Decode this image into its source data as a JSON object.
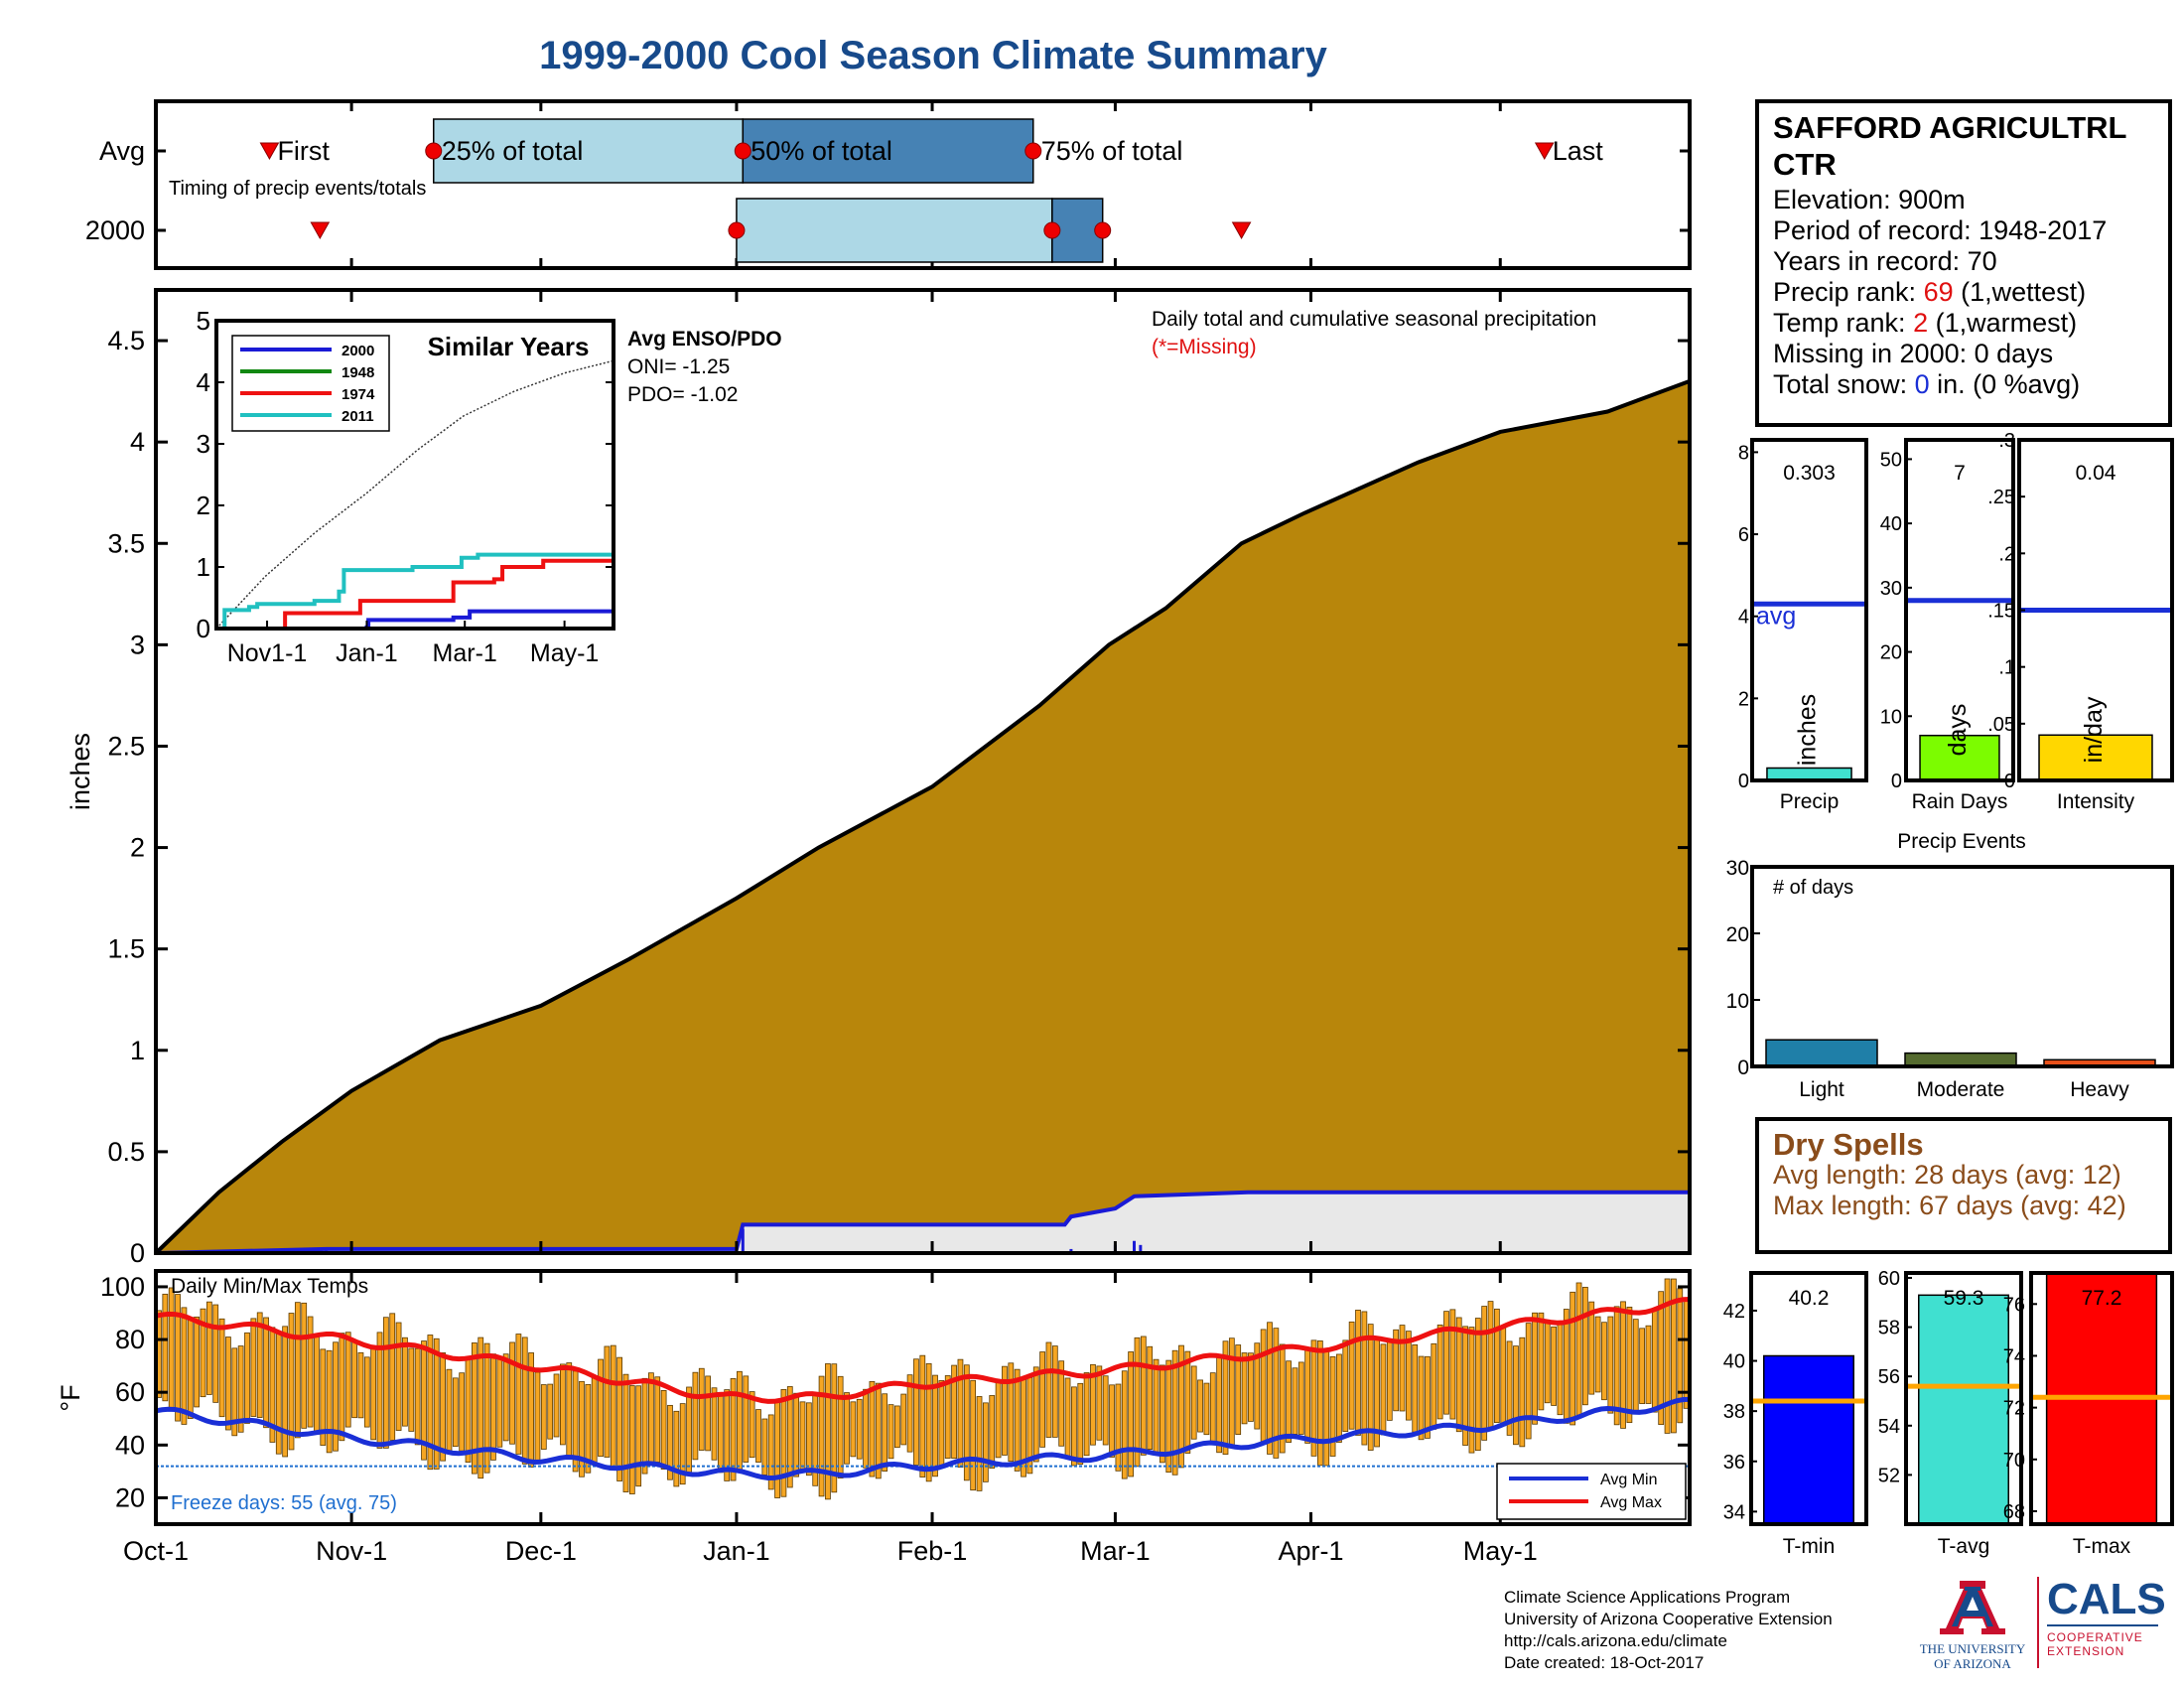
{
  "title": "1999-2000 Cool Season Climate Summary",
  "station": {
    "name_line1": "SAFFORD AGRICULTRL",
    "name_line2": "CTR",
    "elevation": "Elevation: 900m",
    "period": "Period of record: 1948-2017",
    "years": "Years in record: 70",
    "precip_rank_prefix": "Precip rank: ",
    "precip_rank_value": "69",
    "precip_rank_suffix": " (1,wettest)",
    "temp_rank_prefix": "Temp rank: ",
    "temp_rank_value": "2",
    "temp_rank_suffix": " (1,warmest)",
    "missing": "Missing in 2000: 0 days",
    "snow_prefix": "Total snow: ",
    "snow_value": "0",
    "snow_suffix": " in. (0 %avg)"
  },
  "dry_spells": {
    "title": "Dry Spells",
    "avg": "Avg length: 28 days (avg: 12)",
    "max": "Max length: 67 days (avg: 42)"
  },
  "footer": {
    "line1": "Climate Science Applications Program",
    "line2": "University of Arizona Cooperative Extension",
    "line3": "http://cals.arizona.edu/climate",
    "line4": " Date created: 18-Oct-2017"
  },
  "logos": {
    "ua_line1": "THE UNIVERSITY",
    "ua_line2": "OF ARIZONA",
    "cals": "CALS",
    "cals_sub1": "COOPERATIVE",
    "cals_sub2": "EXTENSION"
  },
  "colors": {
    "cumulative_fill": "#b8860b",
    "season_2000": "#1a1ad6",
    "bar_orange": "#f5a623",
    "avg_max": "#ee1111",
    "avg_min": "#1a2fd6",
    "timing_light": "#add8e6",
    "timing_dark": "#4682b4",
    "precip_bar": "#40e0d0",
    "raindays_bar": "#7cfc00",
    "intensity_bar": "#ffd700",
    "tmin_bar": "#0000ff",
    "tavg_bar": "#40e0d0",
    "tmax_bar": "#ff0000",
    "light_bar": "#1f7fa8",
    "moderate_bar": "#556b2f",
    "heavy_bar": "#e8501a",
    "avg_line_temp": "#ffa500"
  },
  "chart_data": [
    {
      "id": "timing",
      "type": "bar",
      "subtitle": "Timing of precip events/totals",
      "rows": [
        "Avg",
        "2000"
      ],
      "labels": [
        "First",
        "25% of total",
        "50% of total",
        "75% of total",
        "Last"
      ],
      "avg": {
        "first": "Oct-19",
        "p25": "Nov-14",
        "p50": "Jan-2",
        "p75": "Feb-17",
        "last": "May-8"
      },
      "y2000": {
        "first": "Oct-27",
        "p25": "Jan-1",
        "p50": "Feb-20",
        "p75": "Feb-28",
        "last": "Mar-21"
      },
      "xlim": [
        "Oct-1",
        "May-31"
      ]
    },
    {
      "id": "cumulative",
      "type": "area",
      "annotation": "Daily total and cumulative seasonal precipitation",
      "missing_note": "(*=Missing)",
      "ylabel": "inches",
      "yticks": [
        0,
        0.5,
        1,
        1.5,
        2,
        2.5,
        3,
        3.5,
        4,
        4.5
      ],
      "ylim": [
        0,
        4.75
      ],
      "xticks": [
        "Oct-1",
        "Nov-1",
        "Dec-1",
        "Jan-1",
        "Feb-1",
        "Mar-1",
        "Apr-1",
        "May-1"
      ],
      "avg_cumulative": [
        [
          0,
          0
        ],
        [
          10,
          0.3
        ],
        [
          20,
          0.55
        ],
        [
          31,
          0.8
        ],
        [
          45,
          1.05
        ],
        [
          61,
          1.22
        ],
        [
          75,
          1.45
        ],
        [
          92,
          1.75
        ],
        [
          105,
          2.0
        ],
        [
          123,
          2.3
        ],
        [
          140,
          2.7
        ],
        [
          151,
          3.0
        ],
        [
          160,
          3.18
        ],
        [
          172,
          3.5
        ],
        [
          182,
          3.65
        ],
        [
          200,
          3.9
        ],
        [
          213,
          4.05
        ],
        [
          230,
          4.15
        ],
        [
          243,
          4.3
        ]
      ],
      "season_2000": [
        [
          0,
          0
        ],
        [
          27,
          0.02
        ],
        [
          92,
          0.02
        ],
        [
          93,
          0.14
        ],
        [
          144,
          0.14
        ],
        [
          145,
          0.18
        ],
        [
          152,
          0.22
        ],
        [
          155,
          0.28
        ],
        [
          173,
          0.3
        ],
        [
          243,
          0.3
        ]
      ],
      "daily_events_2000": [
        [
          27,
          0.02
        ],
        [
          93,
          0.12
        ],
        [
          145,
          0.02
        ],
        [
          152,
          0.04
        ],
        [
          155,
          0.06
        ],
        [
          156,
          0.04
        ]
      ],
      "enso": {
        "title": "Avg ENSO/PDO",
        "oni": "ONI= -1.25",
        "pdo": "PDO= -1.02"
      }
    },
    {
      "id": "similar_years",
      "type": "line",
      "title": "Similar Years",
      "yticks": [
        0,
        1,
        2,
        3,
        4,
        5
      ],
      "ylim": [
        0,
        5
      ],
      "xticks": [
        "Nov1-1",
        "Jan-1",
        "Mar-1",
        "May-1"
      ],
      "series": [
        {
          "name": "2000",
          "color": "#1a1ad6",
          "points": [
            [
              0,
              0
            ],
            [
              92,
              0.02
            ],
            [
              93,
              0.14
            ],
            [
              145,
              0.18
            ],
            [
              155,
              0.28
            ],
            [
              243,
              0.3
            ]
          ]
        },
        {
          "name": "1948",
          "color": "#118811",
          "points": []
        },
        {
          "name": "1974",
          "color": "#ee1111",
          "points": [
            [
              0,
              0
            ],
            [
              40,
              0
            ],
            [
              42,
              0.25
            ],
            [
              85,
              0.25
            ],
            [
              88,
              0.45
            ],
            [
              140,
              0.45
            ],
            [
              145,
              0.75
            ],
            [
              170,
              0.8
            ],
            [
              175,
              1.0
            ],
            [
              200,
              1.1
            ],
            [
              243,
              1.3
            ]
          ]
        },
        {
          "name": "2011",
          "color": "#20c0c0",
          "points": [
            [
              0,
              0
            ],
            [
              5,
              0.3
            ],
            [
              20,
              0.35
            ],
            [
              25,
              0.4
            ],
            [
              60,
              0.45
            ],
            [
              75,
              0.6
            ],
            [
              78,
              0.95
            ],
            [
              120,
              1.0
            ],
            [
              150,
              1.15
            ],
            [
              160,
              1.2
            ],
            [
              243,
              1.2
            ]
          ]
        }
      ],
      "avg": [
        [
          0,
          0
        ],
        [
          30,
          0.85
        ],
        [
          60,
          1.55
        ],
        [
          92,
          2.2
        ],
        [
          123,
          2.9
        ],
        [
          151,
          3.45
        ],
        [
          182,
          3.85
        ],
        [
          213,
          4.15
        ],
        [
          243,
          4.35
        ]
      ]
    },
    {
      "id": "precip_bars",
      "type": "bar",
      "panels": [
        {
          "category": "Precip",
          "unit": "inches",
          "value": 0.303,
          "label": "0.303",
          "avg": 4.3,
          "avg_label": "avg",
          "ylim": [
            0,
            8.3
          ],
          "yticks": [
            0,
            2,
            4,
            6,
            8
          ]
        },
        {
          "category": "Rain Days",
          "unit": "days",
          "value": 7,
          "label": "7",
          "avg": 28,
          "ylim": [
            0,
            53
          ],
          "yticks": [
            0,
            10,
            20,
            30,
            40,
            50
          ]
        },
        {
          "category": "Intensity",
          "unit": "in/day",
          "value": 0.04,
          "label": "0.04",
          "avg": 0.15,
          "ylim": [
            0,
            0.3
          ],
          "yticks": [
            0,
            0.05,
            0.1,
            0.15,
            0.2,
            0.25,
            0.3
          ]
        }
      ]
    },
    {
      "id": "precip_events",
      "type": "bar",
      "title": "Precip Events",
      "annotation": "# of days",
      "categories": [
        "Light",
        "Moderate",
        "Heavy"
      ],
      "values": [
        4,
        2,
        1
      ],
      "ylim": [
        0,
        30
      ],
      "yticks": [
        0,
        10,
        20,
        30
      ]
    },
    {
      "id": "daily_temps",
      "type": "bar",
      "title": "Daily Min/Max Temps",
      "ylabel": "°F",
      "yticks": [
        20,
        40,
        60,
        80,
        100
      ],
      "ylim": [
        10,
        106
      ],
      "xticks": [
        "Oct-1",
        "Nov-1",
        "Dec-1",
        "Jan-1",
        "Feb-1",
        "Mar-1",
        "Apr-1",
        "May-1"
      ],
      "freeze_line": 32,
      "freeze_text": "Freeze days: 55 (avg. 75)",
      "legend": [
        "Avg Min",
        "Avg Max"
      ],
      "avg_max": [
        [
          0,
          89
        ],
        [
          30,
          80
        ],
        [
          60,
          70
        ],
        [
          90,
          58
        ],
        [
          105,
          58
        ],
        [
          120,
          63
        ],
        [
          150,
          68
        ],
        [
          180,
          76
        ],
        [
          210,
          84
        ],
        [
          243,
          94
        ]
      ],
      "avg_min": [
        [
          0,
          53
        ],
        [
          30,
          43
        ],
        [
          60,
          35
        ],
        [
          92,
          29
        ],
        [
          105,
          29
        ],
        [
          120,
          32
        ],
        [
          150,
          36
        ],
        [
          180,
          42
        ],
        [
          210,
          47
        ],
        [
          243,
          56
        ]
      ]
    },
    {
      "id": "temp_bars",
      "type": "bar",
      "panels": [
        {
          "category": "T-min",
          "value": 40.2,
          "label": "40.2",
          "avg": 38.4,
          "ylim": [
            33.5,
            43.5
          ],
          "yticks": [
            34,
            36,
            38,
            40,
            42
          ]
        },
        {
          "category": "T-avg",
          "value": 59.3,
          "label": "59.3",
          "avg": 55.6,
          "ylim": [
            50,
            60.2
          ],
          "yticks": [
            52,
            54,
            56,
            58,
            60
          ]
        },
        {
          "category": "T-max",
          "value": 77.2,
          "label": "77.2",
          "avg": 72.4,
          "ylim": [
            67.5,
            77.2
          ],
          "yticks": [
            68,
            70,
            72,
            74,
            76
          ]
        }
      ]
    }
  ]
}
